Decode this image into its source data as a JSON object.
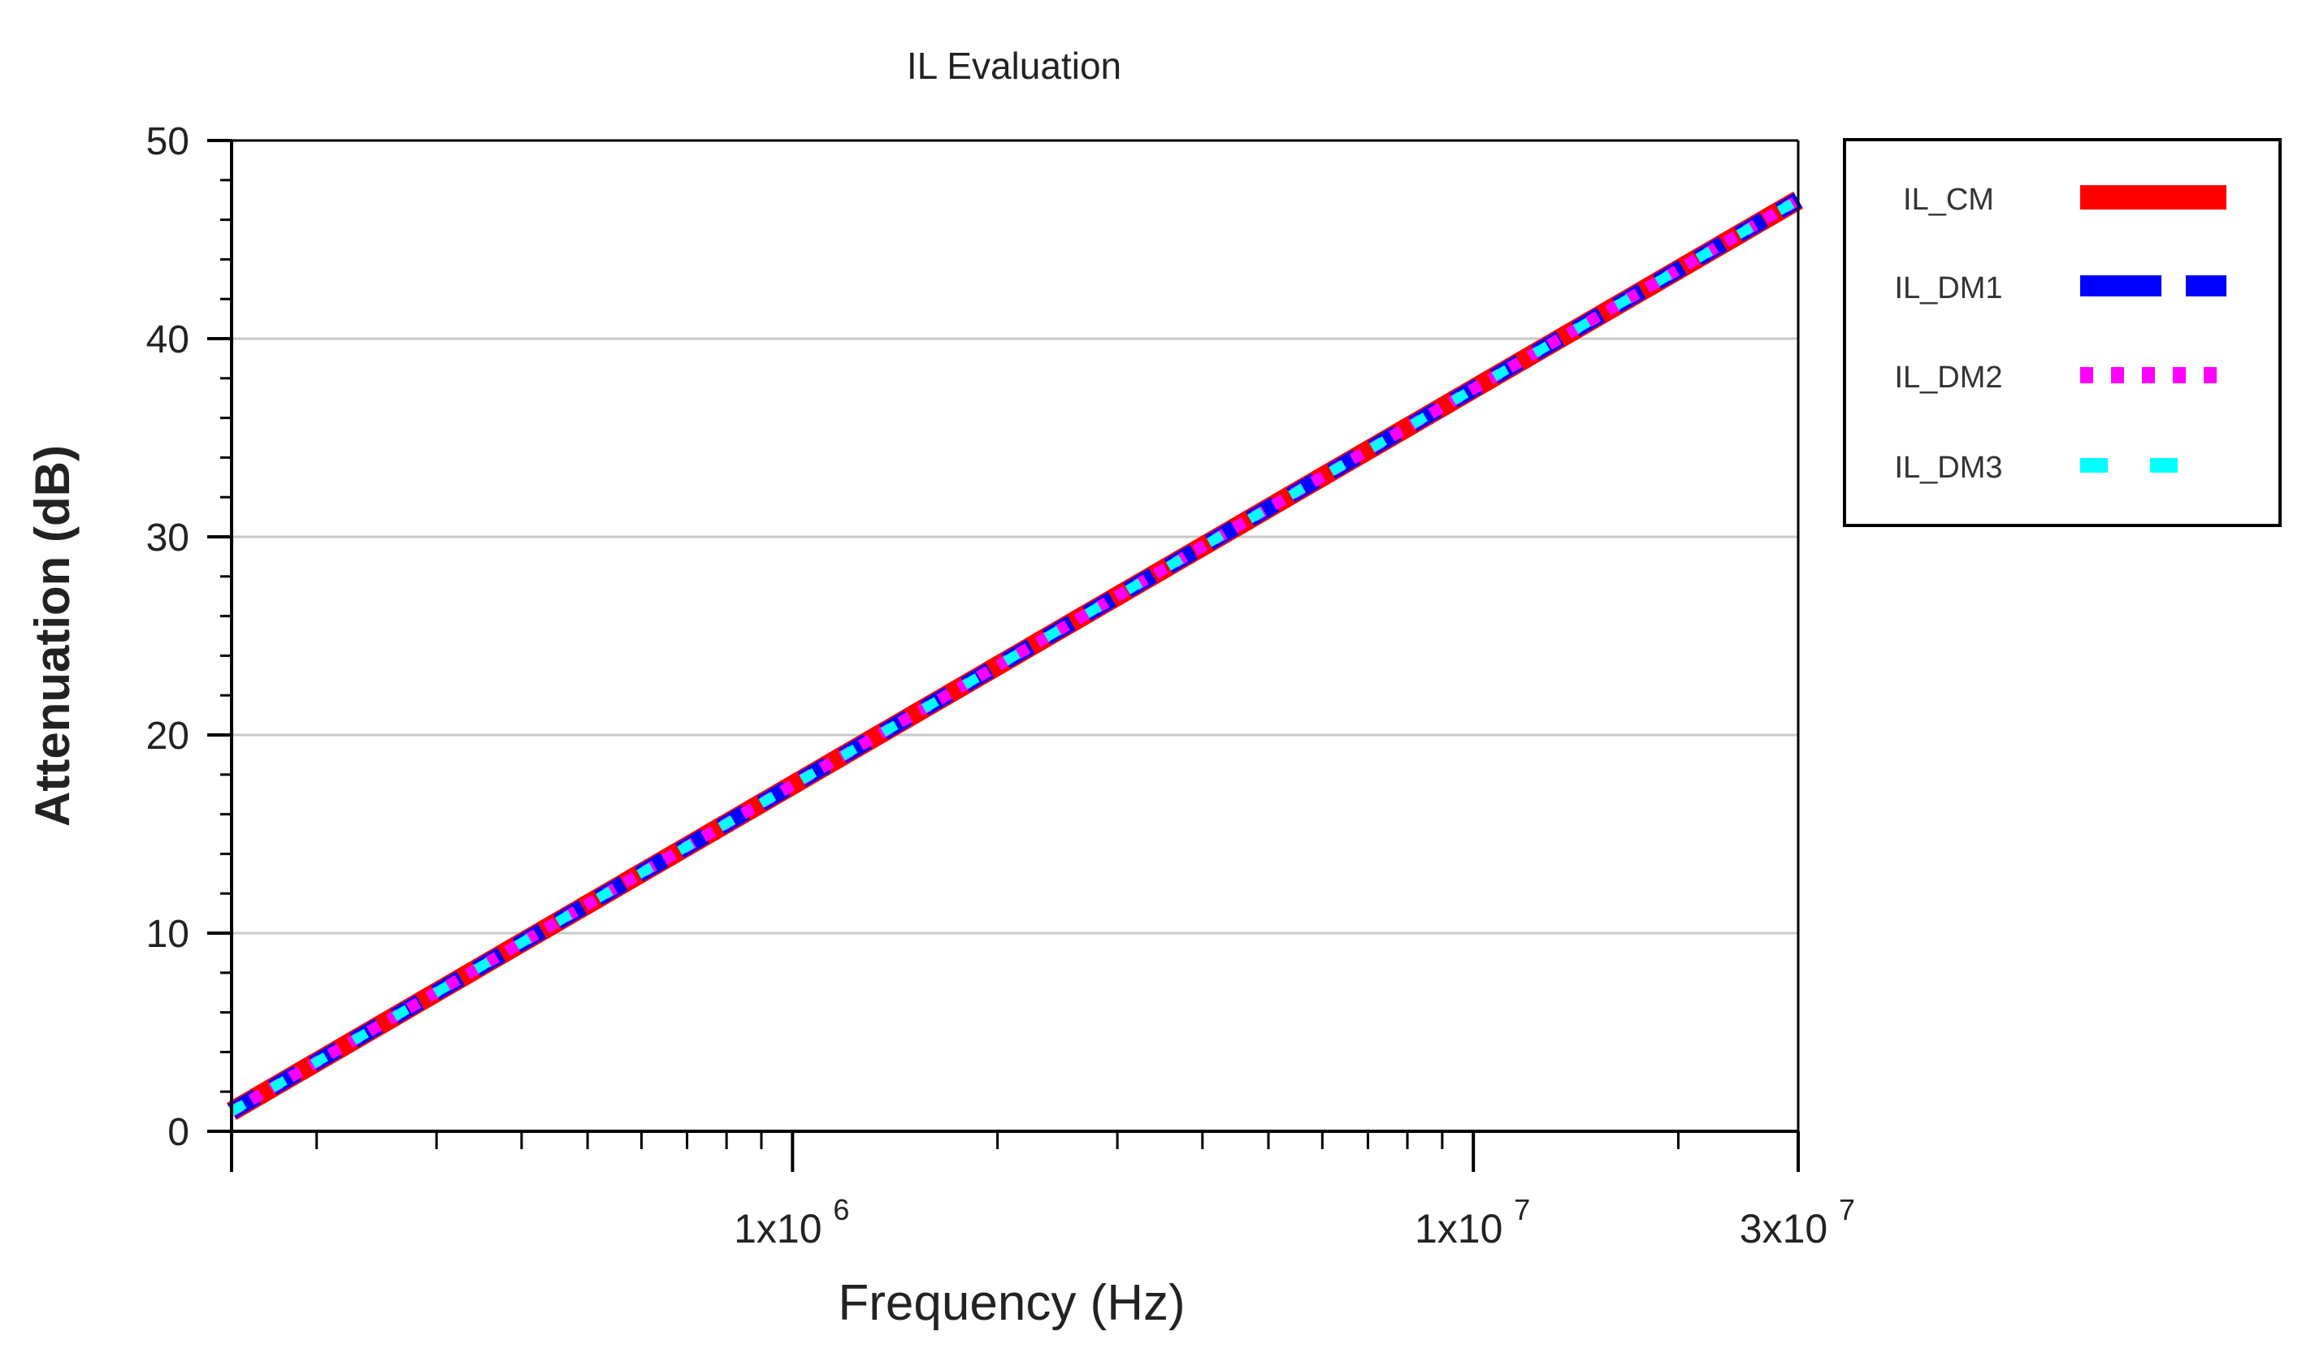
{
  "chart_data": {
    "type": "line",
    "title": "IL Evaluation",
    "xlabel": "Frequency (Hz)",
    "ylabel": "Attenuation (dB)",
    "x_scale": "log",
    "xlim": [
      150000,
      30000000
    ],
    "ylim": [
      0,
      50
    ],
    "y_ticks": [
      0,
      10,
      20,
      30,
      40,
      50
    ],
    "x_tick_labels": [
      {
        "value": 1000000,
        "mantissa": "1x10",
        "exponent": "6"
      },
      {
        "value": 10000000,
        "mantissa": "1x10",
        "exponent": "7"
      },
      {
        "value": 30000000,
        "mantissa": "3x10",
        "exponent": "7"
      }
    ],
    "grid": "horizontal",
    "legend_position": "right",
    "series": [
      {
        "name": "IL_CM",
        "color": "#ff0000",
        "style": "solid",
        "x": [
          150000,
          30000000
        ],
        "y": [
          1,
          47
        ]
      },
      {
        "name": "IL_DM1",
        "color": "#0000ff",
        "style": "dashed",
        "x": [
          150000,
          30000000
        ],
        "y": [
          1,
          47
        ]
      },
      {
        "name": "IL_DM2",
        "color": "#ff00ff",
        "style": "dotted",
        "x": [
          150000,
          30000000
        ],
        "y": [
          1,
          47
        ]
      },
      {
        "name": "IL_DM3",
        "color": "#00ffff",
        "style": "sparse-dash",
        "x": [
          150000,
          30000000
        ],
        "y": [
          1,
          47
        ]
      }
    ]
  }
}
